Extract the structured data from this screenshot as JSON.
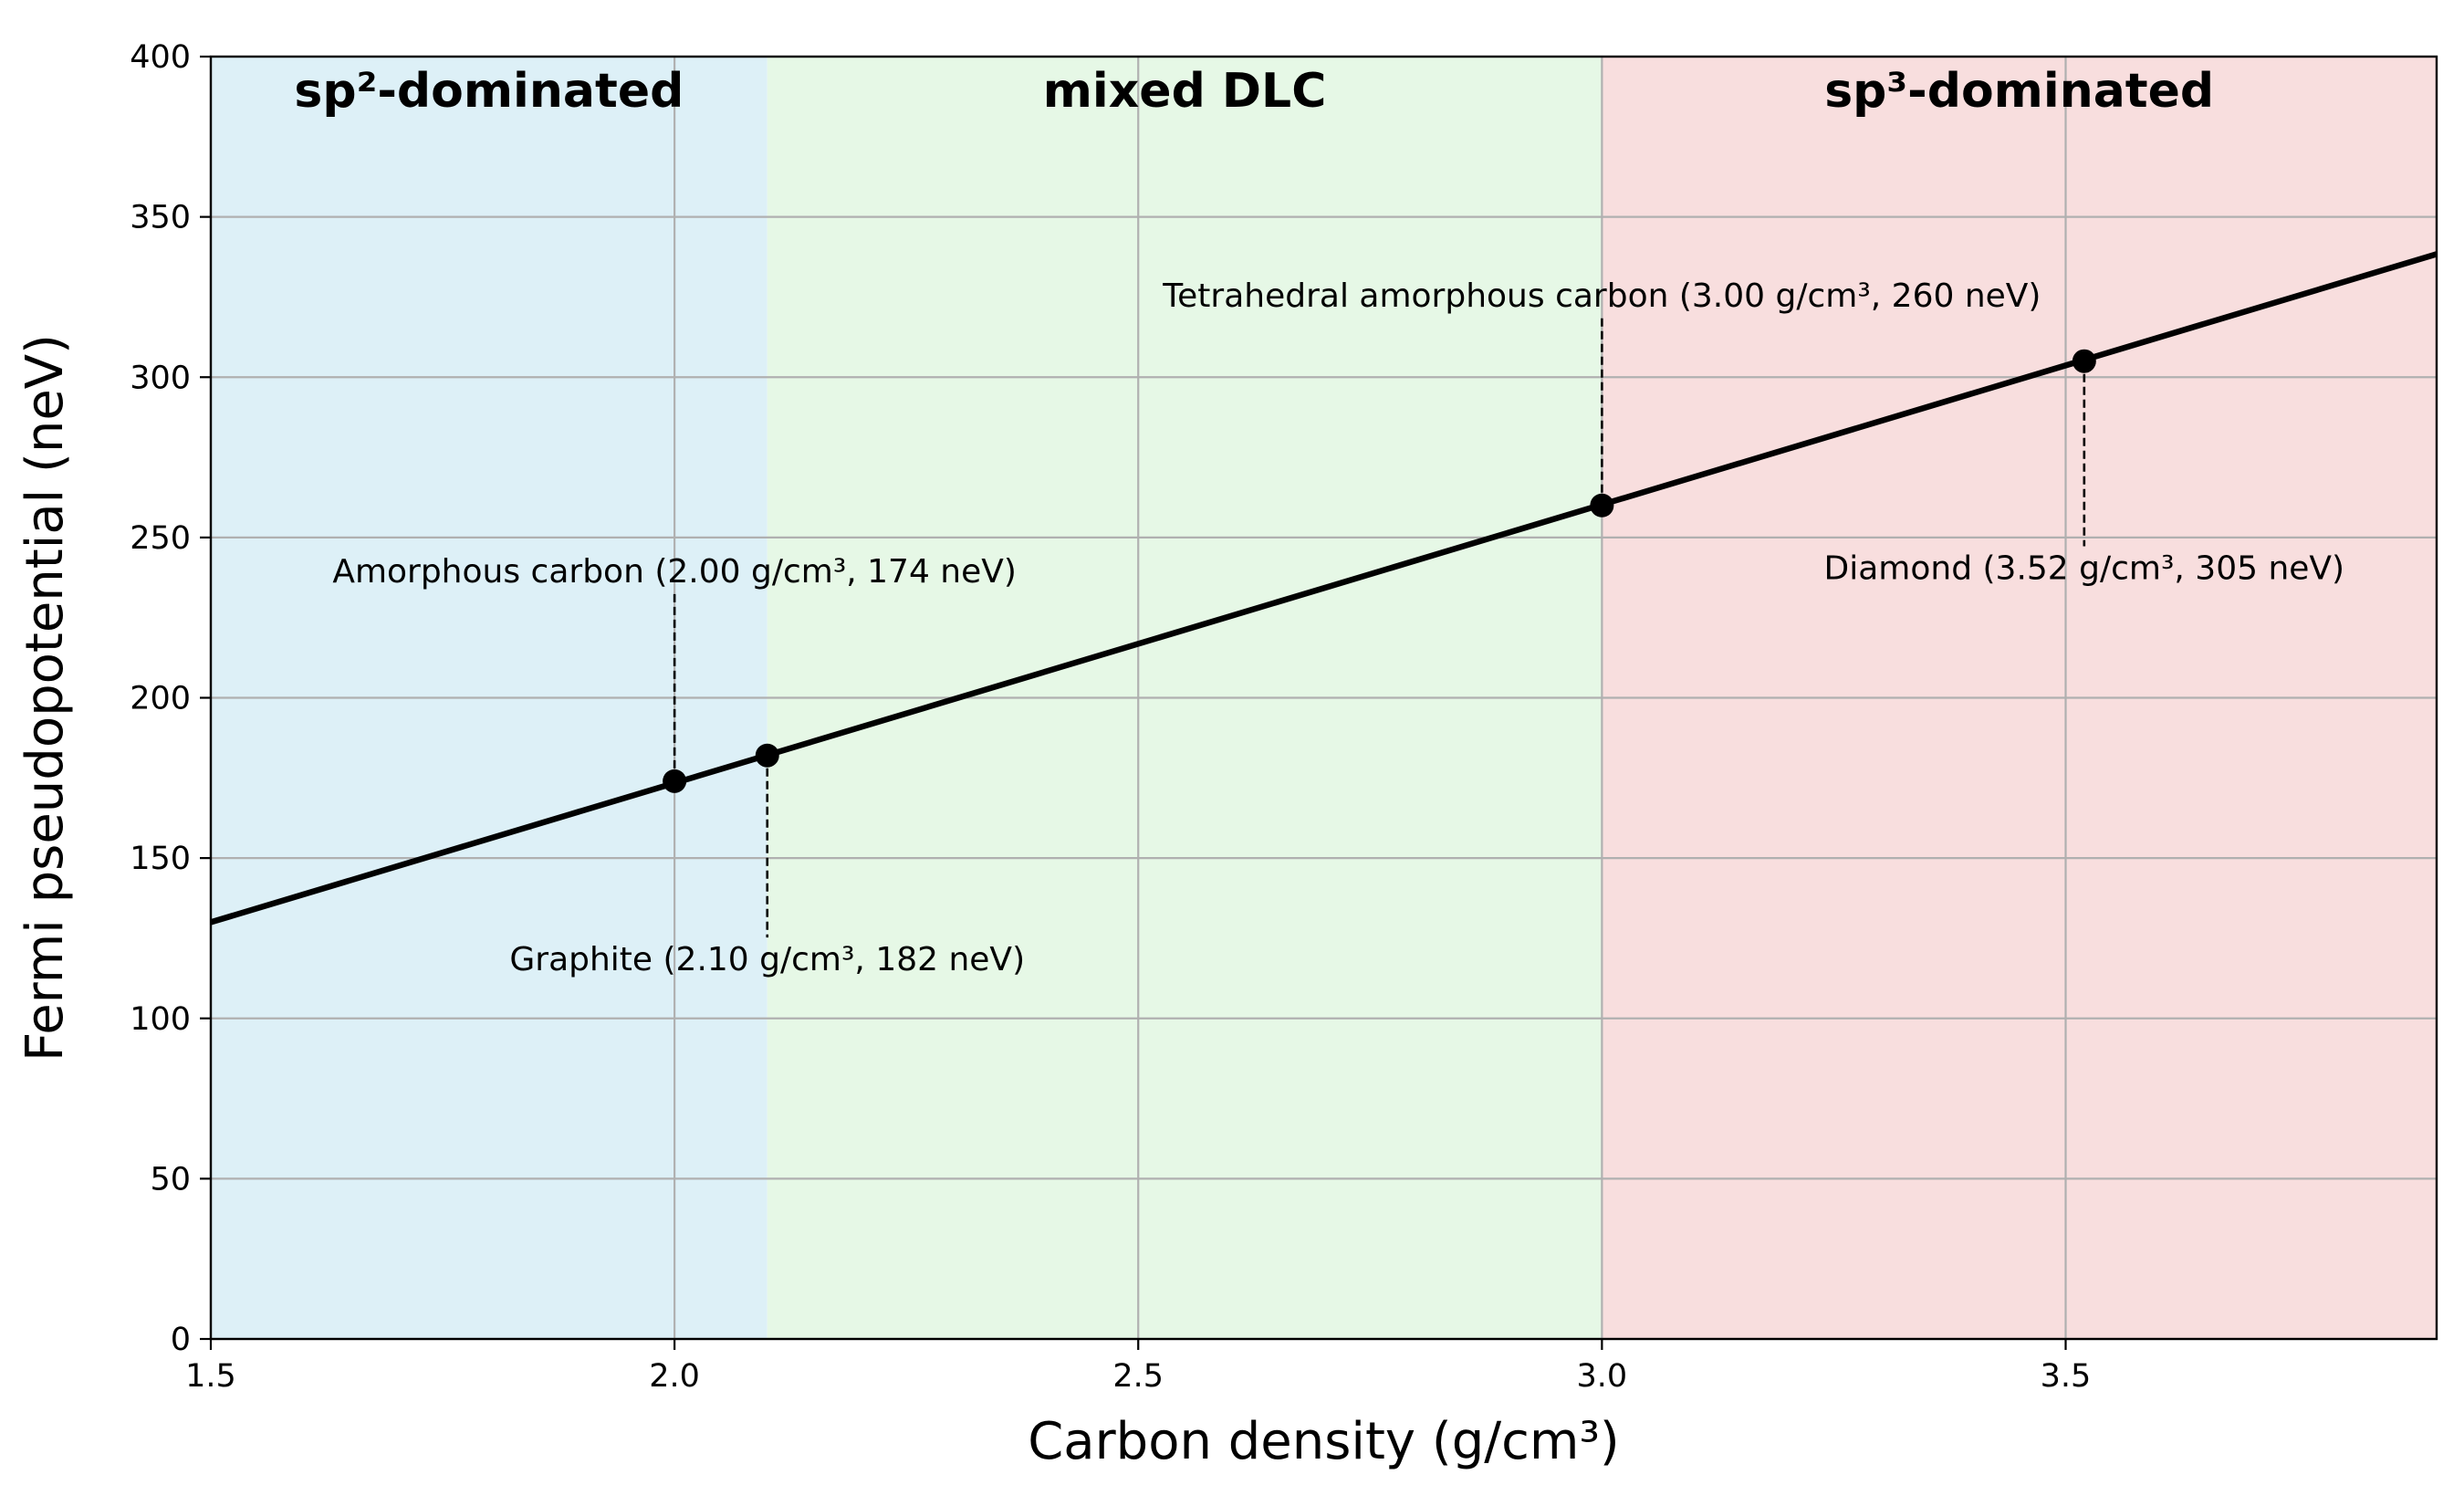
{
  "chart_data": {
    "type": "line",
    "xlabel": "Carbon density (g/cm³)",
    "ylabel": "Fermi pseudopotential (neV)",
    "xlim": [
      1.5,
      3.9
    ],
    "ylim": [
      0,
      400
    ],
    "grid": true,
    "xticks": [
      {
        "value": 1.5,
        "label": "1.5"
      },
      {
        "value": 2.0,
        "label": "2.0"
      },
      {
        "value": 2.5,
        "label": "2.5"
      },
      {
        "value": 3.0,
        "label": "3.0"
      },
      {
        "value": 3.5,
        "label": "3.5"
      }
    ],
    "yticks": [
      {
        "value": 0,
        "label": "0"
      },
      {
        "value": 50,
        "label": "50"
      },
      {
        "value": 100,
        "label": "100"
      },
      {
        "value": 150,
        "label": "150"
      },
      {
        "value": 200,
        "label": "200"
      },
      {
        "value": 250,
        "label": "250"
      },
      {
        "value": 300,
        "label": "300"
      },
      {
        "value": 350,
        "label": "350"
      },
      {
        "value": 400,
        "label": "400"
      }
    ],
    "regions": [
      {
        "label": "sp²-dominated",
        "x_start": 1.5,
        "x_end": 2.1,
        "color": "#ddf0f7"
      },
      {
        "label": "mixed DLC",
        "x_start": 2.1,
        "x_end": 3.0,
        "color": "#e6f8e6"
      },
      {
        "label": "sp³-dominated",
        "x_start": 3.0,
        "x_end": 3.9,
        "color": "#f8dede"
      }
    ],
    "series": [
      {
        "name": "Fermi pseudopotential",
        "color": "#000000",
        "x": [
          1.5,
          3.9
        ],
        "y": [
          130,
          338.4
        ]
      }
    ],
    "points": [
      {
        "name": "Amorphous carbon",
        "x": 2.0,
        "y": 174,
        "label": "Amorphous carbon (2.00 g/cm³, 174 neV)",
        "label_y": 236
      },
      {
        "name": "Graphite",
        "x": 2.1,
        "y": 182,
        "label": "Graphite (2.10 g/cm³, 182 neV)",
        "label_y": 115
      },
      {
        "name": "Tetrahedral amorphous carbon",
        "x": 3.0,
        "y": 260,
        "label": "Tetrahedral amorphous carbon (3.00 g/cm³, 260 neV)",
        "label_y": 322
      },
      {
        "name": "Diamond",
        "x": 3.52,
        "y": 305,
        "label": "Diamond (3.52 g/cm³, 305 neV)",
        "label_y": 237
      }
    ],
    "colors": {
      "line": "#000000",
      "grid": "#b0b0b0",
      "axis": "#000000"
    }
  }
}
